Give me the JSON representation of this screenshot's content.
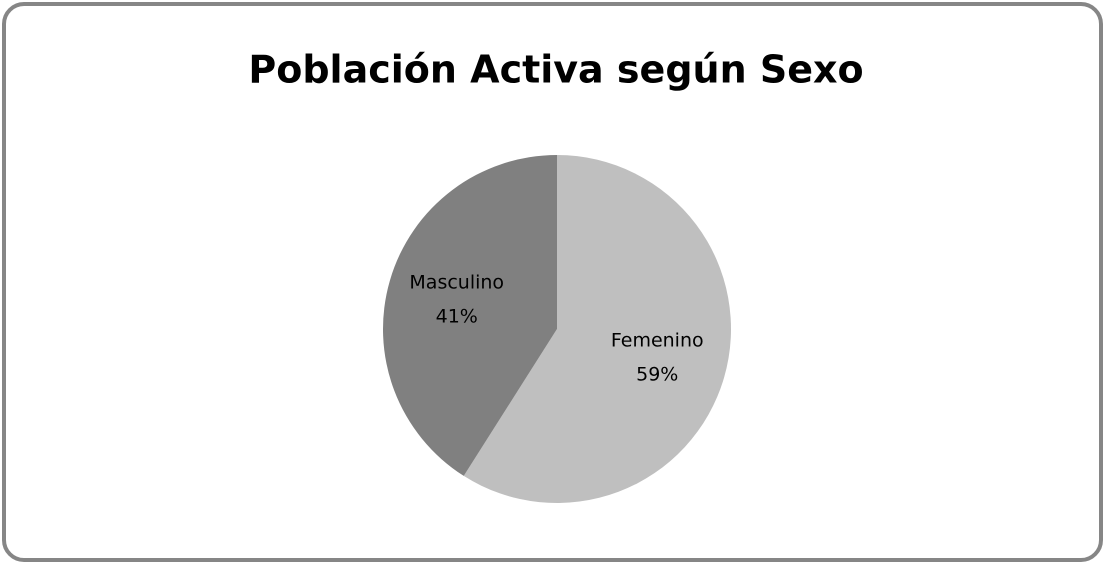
{
  "chart_data": {
    "type": "pie",
    "title": "Población Activa según Sexo",
    "categories": [
      "Femenino",
      "Masculino"
    ],
    "values": [
      59,
      41
    ],
    "value_labels": [
      "59%",
      "41%"
    ],
    "colors": [
      "#bfbfbf",
      "#808080"
    ]
  }
}
